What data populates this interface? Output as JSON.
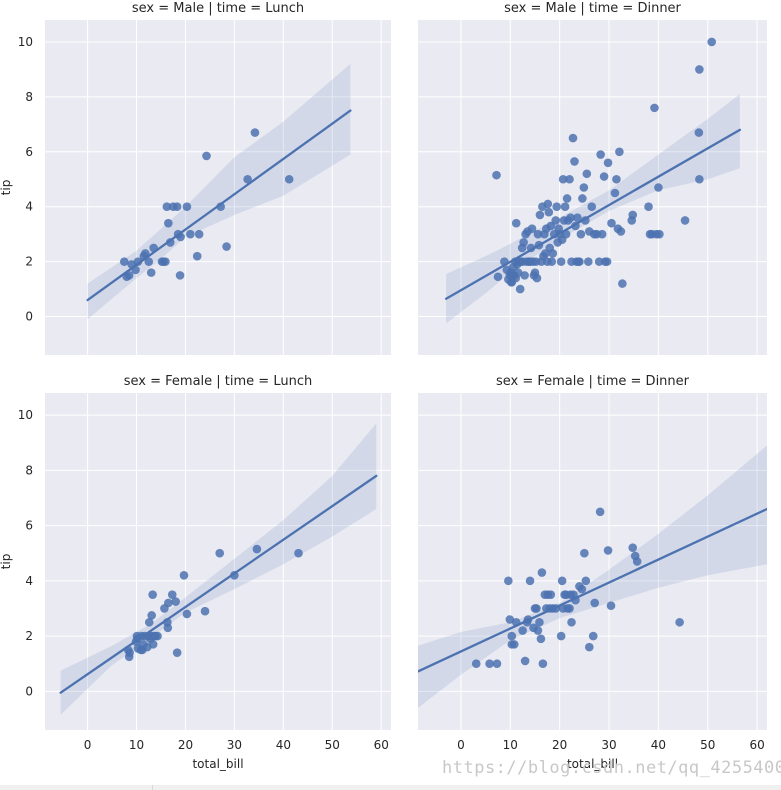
{
  "chart_data": {
    "type": "scatter",
    "figure": "lmplot facet grid",
    "xlabel": "total_bill",
    "ylabel": "tip",
    "ylim": [
      -1.4,
      10.8
    ],
    "x_ticks": [
      0,
      10,
      20,
      30,
      40,
      50,
      60
    ],
    "y_ticks": [
      0,
      2,
      4,
      6,
      8,
      10
    ],
    "colors": {
      "background": "#eaeaf2",
      "grid": "#ffffff",
      "points": "#4c72b0",
      "line": "#4c72b0",
      "band": "#4c72b0"
    },
    "panels": [
      {
        "title": "sex = Male | time = Lunch",
        "xlim": [
          -8.7,
          62.0
        ],
        "regression": {
          "x0": 0.0,
          "y0": 0.6,
          "x1": 53.7,
          "y1": 7.5
        },
        "band": {
          "x": [
            0,
            10,
            15,
            20,
            30,
            40,
            53.7
          ],
          "upper": [
            1.2,
            2.4,
            3.2,
            4.0,
            5.8,
            7.1,
            9.2
          ],
          "lower": [
            -0.1,
            1.4,
            2.1,
            2.9,
            3.7,
            4.4,
            5.9
          ]
        },
        "points": [
          [
            7.5,
            2.0
          ],
          [
            8.0,
            1.45
          ],
          [
            8.5,
            1.5
          ],
          [
            9.0,
            1.9
          ],
          [
            9.8,
            1.7
          ],
          [
            10.3,
            2.0
          ],
          [
            11.5,
            2.2
          ],
          [
            11.8,
            2.3
          ],
          [
            12.5,
            2.0
          ],
          [
            13.0,
            1.6
          ],
          [
            13.5,
            2.5
          ],
          [
            15.2,
            2.0
          ],
          [
            15.5,
            2.0
          ],
          [
            15.9,
            2.0
          ],
          [
            16.2,
            4.0
          ],
          [
            16.5,
            3.4
          ],
          [
            16.9,
            2.7
          ],
          [
            17.5,
            4.0
          ],
          [
            18.3,
            4.0
          ],
          [
            18.5,
            3.0
          ],
          [
            18.9,
            1.5
          ],
          [
            19.0,
            2.9
          ],
          [
            20.3,
            4.0
          ],
          [
            21.0,
            3.0
          ],
          [
            22.4,
            2.2
          ],
          [
            22.8,
            3.0
          ],
          [
            24.3,
            5.85
          ],
          [
            27.2,
            4.0
          ],
          [
            28.4,
            2.55
          ],
          [
            32.7,
            5.0
          ],
          [
            34.2,
            6.7
          ],
          [
            41.2,
            5.0
          ]
        ]
      },
      {
        "title": "sex = Male | time = Dinner",
        "xlim": [
          -8.7,
          62.0
        ],
        "regression": {
          "x0": -3.0,
          "y0": 0.65,
          "x1": 56.5,
          "y1": 6.8
        },
        "band": {
          "x": [
            -3.0,
            5,
            10,
            20,
            30,
            40,
            50,
            56.5
          ],
          "upper": [
            1.55,
            2.2,
            2.65,
            3.6,
            4.6,
            5.9,
            7.2,
            8.1
          ],
          "lower": [
            -0.25,
            0.85,
            1.6,
            2.8,
            3.85,
            4.6,
            5.0,
            5.4
          ]
        },
        "points": [
          [
            7.2,
            5.15
          ],
          [
            7.5,
            1.45
          ],
          [
            8.8,
            2.0
          ],
          [
            9.3,
            1.7
          ],
          [
            9.6,
            1.35
          ],
          [
            9.9,
            1.5
          ],
          [
            10.1,
            1.6
          ],
          [
            10.2,
            1.25
          ],
          [
            10.3,
            1.25
          ],
          [
            10.5,
            1.5
          ],
          [
            10.6,
            1.8
          ],
          [
            10.8,
            1.5
          ],
          [
            11.0,
            2.0
          ],
          [
            11.1,
            1.4
          ],
          [
            11.2,
            3.4
          ],
          [
            11.4,
            1.9
          ],
          [
            11.6,
            1.6
          ],
          [
            11.7,
            2.0
          ],
          [
            12.0,
            1.0
          ],
          [
            12.1,
            2.0
          ],
          [
            12.4,
            2.5
          ],
          [
            12.5,
            2.0
          ],
          [
            12.7,
            2.7
          ],
          [
            12.9,
            1.5
          ],
          [
            13.1,
            3.0
          ],
          [
            13.3,
            2.0
          ],
          [
            13.5,
            3.1
          ],
          [
            13.8,
            2.0
          ],
          [
            14.0,
            2.0
          ],
          [
            14.2,
            2.5
          ],
          [
            14.4,
            3.2
          ],
          [
            14.6,
            2.0
          ],
          [
            14.8,
            1.5
          ],
          [
            15.0,
            1.6
          ],
          [
            15.2,
            2.0
          ],
          [
            15.4,
            1.4
          ],
          [
            15.6,
            3.0
          ],
          [
            15.8,
            2.6
          ],
          [
            16.0,
            3.7
          ],
          [
            16.3,
            2.0
          ],
          [
            16.5,
            4.0
          ],
          [
            16.7,
            2.2
          ],
          [
            16.9,
            3.0
          ],
          [
            17.1,
            2.3
          ],
          [
            17.3,
            3.2
          ],
          [
            17.5,
            2.0
          ],
          [
            17.6,
            4.1
          ],
          [
            17.8,
            3.8
          ],
          [
            18.0,
            2.5
          ],
          [
            18.2,
            3.3
          ],
          [
            18.4,
            2.0
          ],
          [
            18.6,
            2.3
          ],
          [
            18.9,
            3.0
          ],
          [
            19.2,
            3.5
          ],
          [
            19.4,
            4.0
          ],
          [
            19.6,
            2.7
          ],
          [
            19.8,
            3.2
          ],
          [
            20.0,
            3.0
          ],
          [
            20.3,
            2.0
          ],
          [
            20.5,
            2.8
          ],
          [
            20.7,
            5.0
          ],
          [
            20.9,
            3.5
          ],
          [
            21.1,
            4.0
          ],
          [
            21.3,
            3.0
          ],
          [
            21.5,
            4.3
          ],
          [
            21.7,
            3.5
          ],
          [
            22.0,
            5.0
          ],
          [
            22.2,
            3.6
          ],
          [
            22.4,
            2.0
          ],
          [
            22.7,
            6.5
          ],
          [
            23.0,
            5.65
          ],
          [
            23.2,
            3.3
          ],
          [
            23.4,
            2.0
          ],
          [
            23.6,
            3.6
          ],
          [
            23.8,
            2.0
          ],
          [
            24.0,
            2.0
          ],
          [
            24.3,
            3.0
          ],
          [
            24.6,
            4.3
          ],
          [
            24.9,
            4.7
          ],
          [
            25.2,
            3.5
          ],
          [
            25.5,
            5.2
          ],
          [
            25.8,
            2.0
          ],
          [
            26.0,
            3.1
          ],
          [
            26.5,
            4.0
          ],
          [
            27.0,
            3.0
          ],
          [
            27.5,
            3.0
          ],
          [
            28.0,
            2.0
          ],
          [
            28.3,
            5.9
          ],
          [
            28.6,
            3.0
          ],
          [
            29.0,
            5.1
          ],
          [
            29.2,
            2.0
          ],
          [
            29.6,
            2.0
          ],
          [
            29.8,
            5.6
          ],
          [
            30.5,
            3.4
          ],
          [
            31.2,
            4.5
          ],
          [
            31.5,
            5.0
          ],
          [
            31.8,
            3.2
          ],
          [
            32.1,
            6.0
          ],
          [
            32.4,
            3.1
          ],
          [
            32.7,
            1.2
          ],
          [
            34.6,
            3.5
          ],
          [
            34.8,
            3.7
          ],
          [
            38.0,
            4.0
          ],
          [
            38.3,
            3.0
          ],
          [
            38.7,
            3.0
          ],
          [
            39.2,
            7.6
          ],
          [
            39.6,
            3.0
          ],
          [
            40.0,
            4.7
          ],
          [
            40.2,
            3.0
          ],
          [
            45.4,
            3.5
          ],
          [
            48.3,
            9.0
          ],
          [
            48.2,
            6.7
          ],
          [
            48.3,
            5.0
          ],
          [
            50.8,
            10.0
          ]
        ]
      },
      {
        "title": "sex = Female | time = Lunch",
        "xlim": [
          -8.7,
          62.0
        ],
        "regression": {
          "x0": -5.5,
          "y0": -0.05,
          "x1": 59.0,
          "y1": 7.8
        },
        "band": {
          "x": [
            -5.5,
            5,
            13,
            20,
            30,
            40,
            50,
            59.0
          ],
          "upper": [
            0.75,
            1.65,
            2.45,
            3.4,
            4.8,
            6.2,
            7.8,
            9.7
          ],
          "lower": [
            -0.85,
            0.95,
            1.95,
            2.85,
            3.7,
            4.6,
            5.6,
            6.6
          ]
        },
        "points": [
          [
            8.3,
            1.5
          ],
          [
            8.5,
            1.25
          ],
          [
            8.6,
            1.4
          ],
          [
            9.9,
            1.8
          ],
          [
            10.1,
            2.0
          ],
          [
            10.2,
            1.9
          ],
          [
            10.3,
            1.55
          ],
          [
            10.9,
            1.5
          ],
          [
            11.0,
            2.0
          ],
          [
            11.2,
            1.5
          ],
          [
            11.4,
            1.7
          ],
          [
            11.7,
            2.0
          ],
          [
            12.2,
            1.6
          ],
          [
            12.5,
            2.0
          ],
          [
            12.6,
            2.5
          ],
          [
            12.8,
            1.9
          ],
          [
            13.0,
            2.0
          ],
          [
            13.1,
            2.75
          ],
          [
            13.3,
            3.5
          ],
          [
            13.4,
            1.7
          ],
          [
            13.6,
            2.0
          ],
          [
            13.9,
            2.0
          ],
          [
            14.3,
            2.0
          ],
          [
            15.7,
            3.0
          ],
          [
            16.3,
            2.5
          ],
          [
            16.4,
            2.3
          ],
          [
            16.5,
            3.2
          ],
          [
            17.3,
            3.5
          ],
          [
            18.0,
            3.25
          ],
          [
            18.3,
            1.4
          ],
          [
            19.7,
            4.2
          ],
          [
            20.3,
            2.8
          ],
          [
            24.0,
            2.9
          ],
          [
            27.0,
            5.0
          ],
          [
            30.0,
            4.2
          ],
          [
            34.6,
            5.15
          ],
          [
            43.1,
            5.0
          ]
        ]
      },
      {
        "title": "sex = Female | time = Dinner",
        "xlim": [
          -8.7,
          62.0
        ],
        "regression": {
          "x0": -8.7,
          "y0": 0.72,
          "x1": 62.0,
          "y1": 6.6
        },
        "band": {
          "x": [
            -8.7,
            0,
            10,
            20,
            30,
            40,
            50,
            62.0
          ],
          "upper": [
            1.65,
            2.15,
            2.5,
            3.2,
            4.4,
            5.7,
            7.1,
            8.9
          ],
          "lower": [
            -0.6,
            0.6,
            1.85,
            2.65,
            3.2,
            3.75,
            4.2,
            4.6
          ]
        },
        "points": [
          [
            3.1,
            1.0
          ],
          [
            5.8,
            1.0
          ],
          [
            7.3,
            1.0
          ],
          [
            9.6,
            4.0
          ],
          [
            9.9,
            2.6
          ],
          [
            10.3,
            1.7
          ],
          [
            10.3,
            2.0
          ],
          [
            10.8,
            1.7
          ],
          [
            11.2,
            2.5
          ],
          [
            12.5,
            2.2
          ],
          [
            13.0,
            1.1
          ],
          [
            13.4,
            2.5
          ],
          [
            13.6,
            2.6
          ],
          [
            14.0,
            4.0
          ],
          [
            14.7,
            2.3
          ],
          [
            15.0,
            3.0
          ],
          [
            15.3,
            3.0
          ],
          [
            15.6,
            2.2
          ],
          [
            15.9,
            2.5
          ],
          [
            16.2,
            1.9
          ],
          [
            16.4,
            4.3
          ],
          [
            16.6,
            1.0
          ],
          [
            17.0,
            3.5
          ],
          [
            17.3,
            3.0
          ],
          [
            17.6,
            3.5
          ],
          [
            18.0,
            3.0
          ],
          [
            18.2,
            3.5
          ],
          [
            18.6,
            3.0
          ],
          [
            19.2,
            3.0
          ],
          [
            20.3,
            2.0
          ],
          [
            20.5,
            4.0
          ],
          [
            20.7,
            3.0
          ],
          [
            21.0,
            3.5
          ],
          [
            21.3,
            3.5
          ],
          [
            21.6,
            3.0
          ],
          [
            22.0,
            3.0
          ],
          [
            22.2,
            3.5
          ],
          [
            22.4,
            2.5
          ],
          [
            22.8,
            3.5
          ],
          [
            23.2,
            3.3
          ],
          [
            24.0,
            3.8
          ],
          [
            24.5,
            3.7
          ],
          [
            25.0,
            5.0
          ],
          [
            25.3,
            4.0
          ],
          [
            26.0,
            1.6
          ],
          [
            26.8,
            2.0
          ],
          [
            27.1,
            3.2
          ],
          [
            28.2,
            6.5
          ],
          [
            29.8,
            5.1
          ],
          [
            30.4,
            3.1
          ],
          [
            34.8,
            5.2
          ],
          [
            35.3,
            4.9
          ],
          [
            35.7,
            4.7
          ],
          [
            44.3,
            2.5
          ]
        ]
      }
    ]
  }
}
